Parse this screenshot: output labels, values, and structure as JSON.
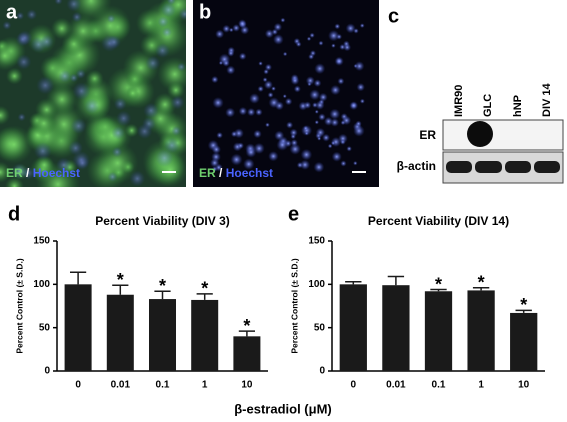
{
  "panels": {
    "a": {
      "label": "a",
      "stain": [
        "ER",
        "/",
        "Hoechst"
      ]
    },
    "b": {
      "label": "b",
      "stain": [
        "ER",
        "/",
        "Hoechst"
      ]
    },
    "c": {
      "label": "c",
      "lanes": [
        "IMR90",
        "GLC",
        "hNP",
        "DIV 14"
      ],
      "rows": [
        "ER",
        "β-actin"
      ]
    },
    "d": {
      "label": "d"
    },
    "e": {
      "label": "e"
    }
  },
  "xlabel": "β-estradiol (μM)",
  "chart_data": [
    {
      "type": "bar",
      "title": "Percent Viability (DIV 3)",
      "ylabel": "Percent Control (± S.D.)",
      "categories": [
        "0",
        "0.01",
        "0.1",
        "1",
        "10"
      ],
      "values": [
        100,
        88,
        83,
        82,
        40
      ],
      "errors": [
        14,
        11,
        9,
        7,
        6
      ],
      "annotations": [
        {
          "index": 1,
          "text": "*"
        },
        {
          "index": 2,
          "text": "*"
        },
        {
          "index": 3,
          "text": "*"
        },
        {
          "index": 4,
          "text": "*"
        }
      ],
      "color": "#1a1a1a",
      "ylim": [
        0,
        150
      ],
      "yticks": [
        0,
        50,
        100,
        150
      ]
    },
    {
      "type": "bar",
      "title": "Percent Viability (DIV 14)",
      "ylabel": "Percent Control (± S.D.)",
      "categories": [
        "0",
        "0.01",
        "0.1",
        "1",
        "10"
      ],
      "values": [
        100,
        99,
        92,
        93,
        67
      ],
      "errors": [
        3,
        10,
        2,
        3,
        3
      ],
      "annotations": [
        {
          "index": 2,
          "text": "*"
        },
        {
          "index": 3,
          "text": "*"
        },
        {
          "index": 4,
          "text": "*"
        }
      ],
      "color": "#1a1a1a",
      "ylim": [
        0,
        150
      ],
      "yticks": [
        0,
        50,
        100,
        150
      ]
    }
  ]
}
